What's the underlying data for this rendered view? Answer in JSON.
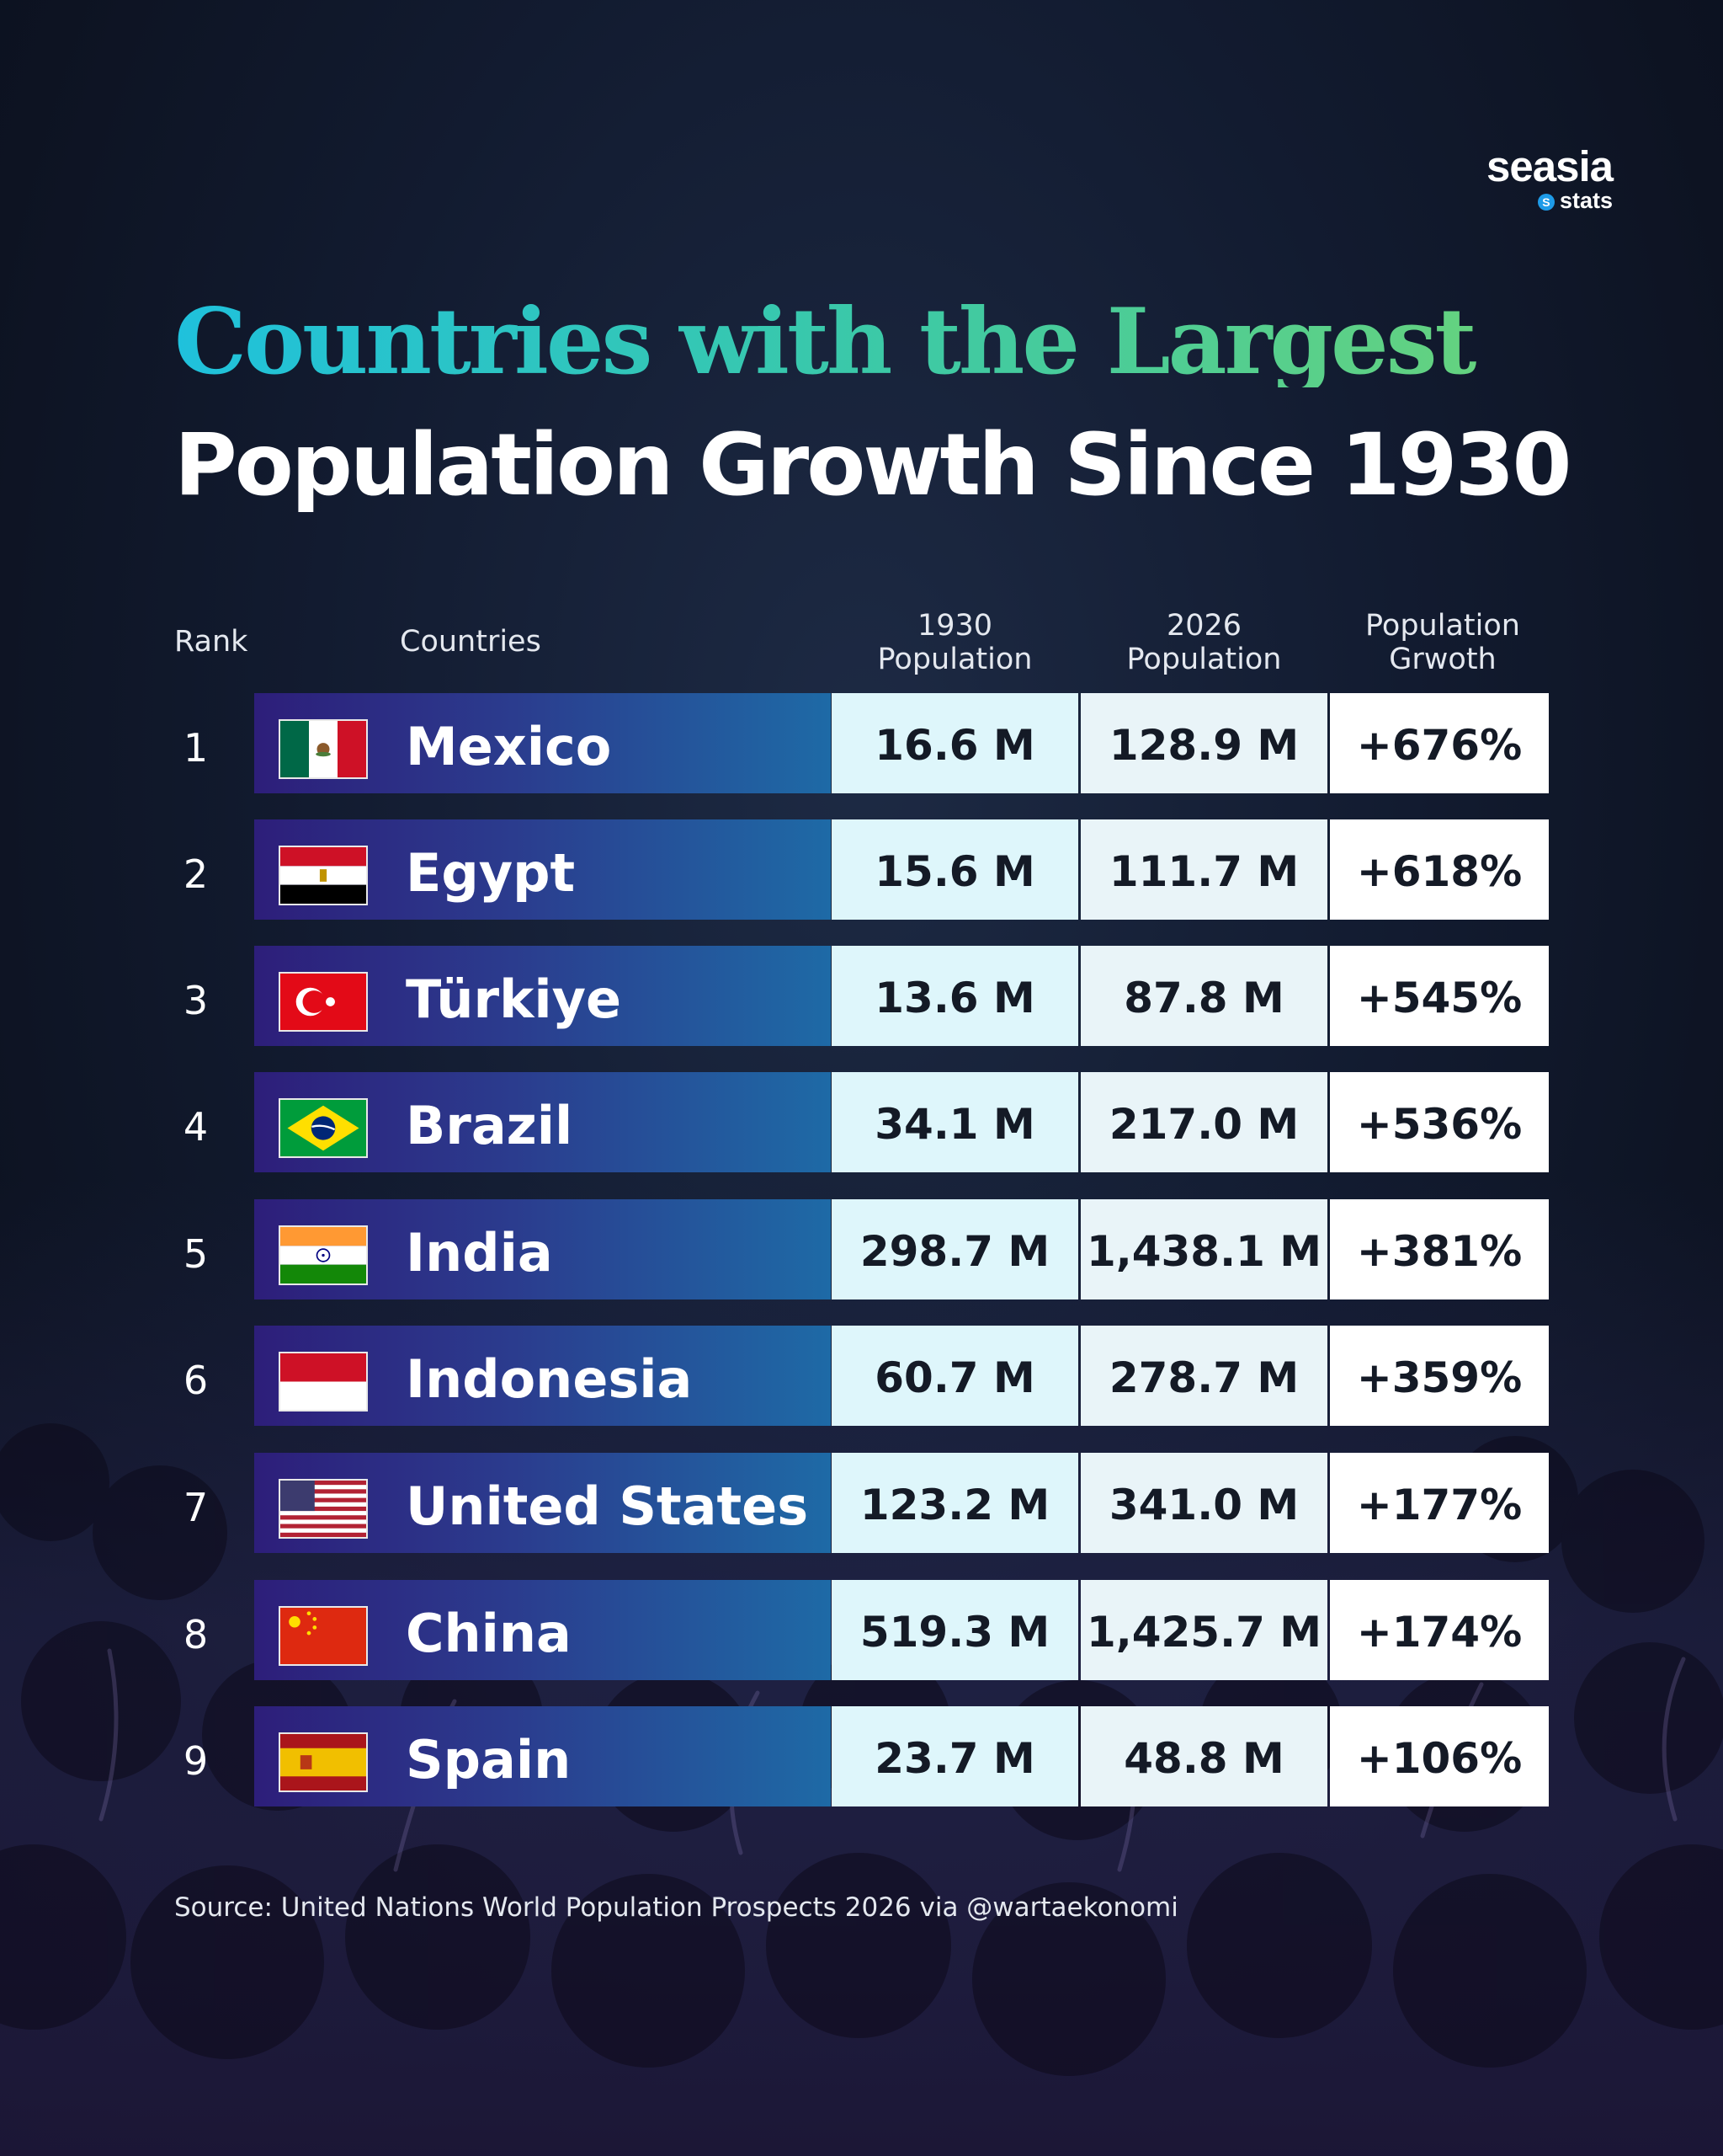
{
  "brand": {
    "name": "seasia",
    "sub": "stats",
    "dot": "S"
  },
  "title": {
    "line1": "Countries with the Largest",
    "line2": "Population Growth Since 1930"
  },
  "headers": {
    "rank": "Rank",
    "countries": "Countries",
    "pop1930": [
      "1930",
      "Population"
    ],
    "pop2026": [
      "2026",
      "Population"
    ],
    "growth": [
      "Population",
      "Grwoth"
    ]
  },
  "chart_data": {
    "type": "table",
    "title": "Countries with the Largest Population Growth Since 1930",
    "columns": [
      "Rank",
      "Countries",
      "1930 Population",
      "2026 Population",
      "Population Grwoth"
    ],
    "rows": [
      {
        "rank": "1",
        "country": "Mexico",
        "flag": "mexico-flag",
        "pop1930": "16.6 M",
        "pop2026": "128.9 M",
        "growth": "+676%"
      },
      {
        "rank": "2",
        "country": "Egypt",
        "flag": "egypt-flag",
        "pop1930": "15.6 M",
        "pop2026": "111.7 M",
        "growth": "+618%"
      },
      {
        "rank": "3",
        "country": "Türkiye",
        "flag": "turkiye-flag",
        "pop1930": "13.6 M",
        "pop2026": "87.8 M",
        "growth": "+545%"
      },
      {
        "rank": "4",
        "country": "Brazil",
        "flag": "brazil-flag",
        "pop1930": "34.1 M",
        "pop2026": "217.0 M",
        "growth": "+536%"
      },
      {
        "rank": "5",
        "country": "India",
        "flag": "india-flag",
        "pop1930": "298.7 M",
        "pop2026": "1,438.1 M",
        "growth": "+381%"
      },
      {
        "rank": "6",
        "country": "Indonesia",
        "flag": "indonesia-flag",
        "pop1930": "60.7 M",
        "pop2026": "278.7 M",
        "growth": "+359%"
      },
      {
        "rank": "7",
        "country": "United States",
        "flag": "united-states-flag",
        "pop1930": "123.2 M",
        "pop2026": "341.0 M",
        "growth": "+177%"
      },
      {
        "rank": "8",
        "country": "China",
        "flag": "china-flag",
        "pop1930": "519.3 M",
        "pop2026": "1,425.7 M",
        "growth": "+174%"
      },
      {
        "rank": "9",
        "country": "Spain",
        "flag": "spain-flag",
        "pop1930": "23.7 M",
        "pop2026": "48.8 M",
        "growth": "+106%"
      }
    ]
  },
  "source": "Source: United Nations World Population Prospects 2026 via @wartaekonomi",
  "colors": {
    "background": "#111a2e",
    "title_gradient": [
      "#1fc1dc",
      "#6dd477"
    ],
    "name_bar": [
      "#2d1e7a",
      "#1e6aa6"
    ],
    "cell_1930": "#def6fb",
    "cell_2026": "#e9f4f8",
    "cell_growth": "#ffffff"
  }
}
